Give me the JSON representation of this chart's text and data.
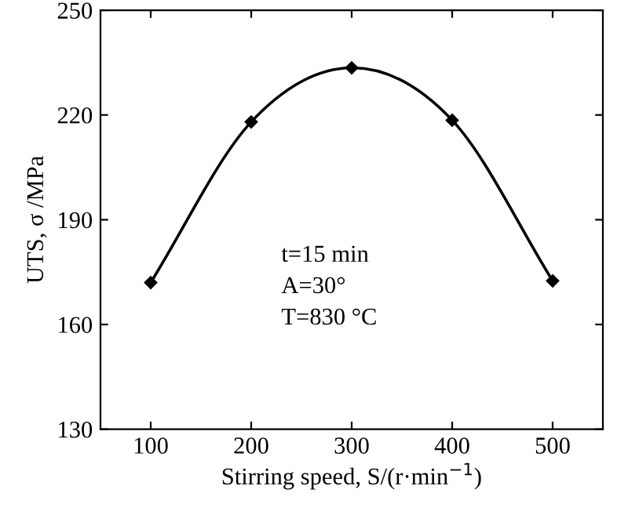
{
  "chart_data": {
    "type": "line",
    "xlabel": "Stirring speed, S/(r·min$^{−1}$)",
    "ylabel": "UTS, σ /MPa",
    "x": [
      100,
      200,
      300,
      400,
      500
    ],
    "series": [
      {
        "color": "#000000",
        "values": [
          172,
          218,
          233.5,
          218.5,
          172.5
        ]
      }
    ],
    "xlim": [
      50,
      550
    ],
    "xticks": [
      100,
      200,
      300,
      400,
      500
    ],
    "ylim": [
      130,
      250
    ],
    "yticks": [
      130,
      160,
      190,
      220,
      250
    ],
    "marker": "diamond",
    "line_style": "solid",
    "grid": false,
    "legend": false,
    "annotations": [
      "t=15 min",
      "A=30°",
      "T=830 °C"
    ]
  }
}
